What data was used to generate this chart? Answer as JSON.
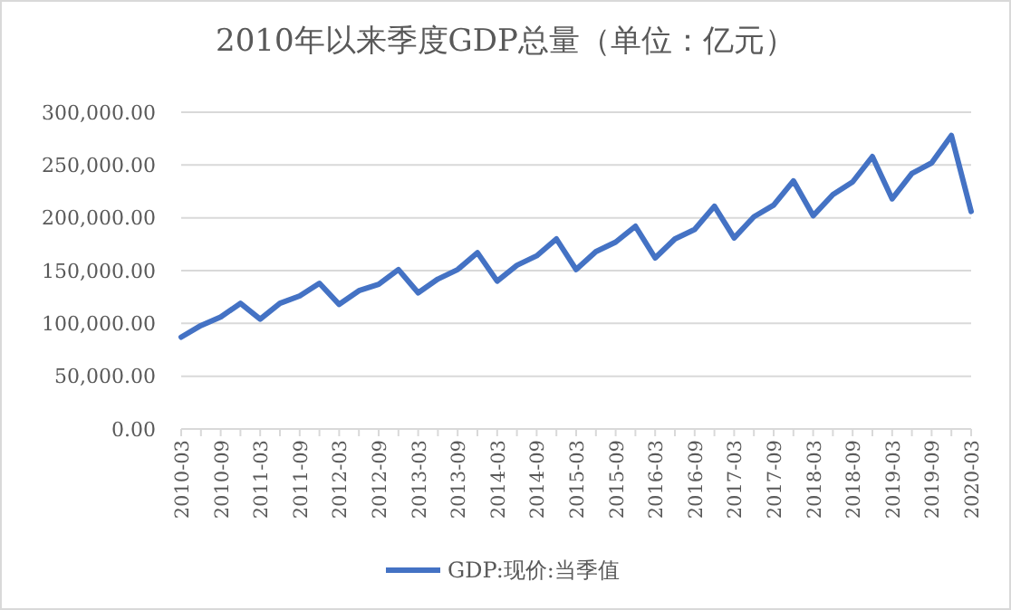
{
  "chart_data": {
    "type": "line",
    "title": "2010年以来季度GDP总量（单位：亿元）",
    "categories": [
      "2010-03",
      null,
      "2010-09",
      null,
      "2011-03",
      null,
      "2011-09",
      null,
      "2012-03",
      null,
      "2012-09",
      null,
      "2013-03",
      null,
      "2013-09",
      null,
      "2014-03",
      null,
      "2014-09",
      null,
      "2015-03",
      null,
      "2015-09",
      null,
      "2016-03",
      null,
      "2016-09",
      null,
      "2017-03",
      null,
      "2017-09",
      null,
      "2018-03",
      null,
      "2018-09",
      null,
      "2019-03",
      null,
      "2019-09",
      null,
      "2020-03"
    ],
    "series": [
      {
        "name": "GDP:现价:当季值",
        "color": "#4472c4",
        "values": [
          87000,
          98000,
          106000,
          119000,
          104000,
          119000,
          126000,
          138000,
          118000,
          131000,
          137000,
          151000,
          129000,
          142000,
          151000,
          167000,
          140000,
          155000,
          164000,
          180000,
          151000,
          168000,
          177000,
          192000,
          162000,
          180000,
          189000,
          211000,
          181000,
          201000,
          212000,
          235000,
          202000,
          222000,
          234000,
          258000,
          218000,
          242000,
          252000,
          278000,
          206000
        ]
      }
    ],
    "ylim": [
      0,
      300000
    ],
    "yticks": [
      {
        "value": 0,
        "label": "0.00"
      },
      {
        "value": 50000,
        "label": "50,000.00"
      },
      {
        "value": 100000,
        "label": "100,000.00"
      },
      {
        "value": 150000,
        "label": "150,000.00"
      },
      {
        "value": 200000,
        "label": "200,000.00"
      },
      {
        "value": 250000,
        "label": "250,000.00"
      },
      {
        "value": 300000,
        "label": "300,000.00"
      }
    ],
    "grid": "y",
    "legend": "bottom",
    "marker": "none",
    "line_style": "solid"
  }
}
